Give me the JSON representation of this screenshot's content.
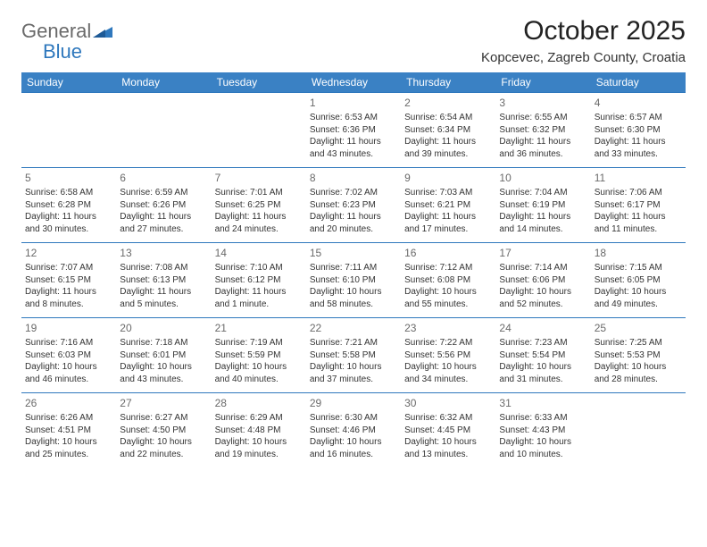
{
  "brand": {
    "part1": "General",
    "part2": "Blue"
  },
  "title": "October 2025",
  "location": "Kopcevec, Zagreb County, Croatia",
  "colors": {
    "header_bg": "#3a81c4",
    "header_text": "#ffffff",
    "border": "#2f78bd",
    "body_text": "#333333",
    "daynum": "#6a6a6a",
    "logo_gray": "#6a6a6a",
    "logo_blue": "#2f78bd",
    "background": "#ffffff"
  },
  "day_headers": [
    "Sunday",
    "Monday",
    "Tuesday",
    "Wednesday",
    "Thursday",
    "Friday",
    "Saturday"
  ],
  "weeks": [
    [
      {},
      {},
      {},
      {
        "n": "1",
        "sr": "Sunrise: 6:53 AM",
        "ss": "Sunset: 6:36 PM",
        "d1": "Daylight: 11 hours",
        "d2": "and 43 minutes."
      },
      {
        "n": "2",
        "sr": "Sunrise: 6:54 AM",
        "ss": "Sunset: 6:34 PM",
        "d1": "Daylight: 11 hours",
        "d2": "and 39 minutes."
      },
      {
        "n": "3",
        "sr": "Sunrise: 6:55 AM",
        "ss": "Sunset: 6:32 PM",
        "d1": "Daylight: 11 hours",
        "d2": "and 36 minutes."
      },
      {
        "n": "4",
        "sr": "Sunrise: 6:57 AM",
        "ss": "Sunset: 6:30 PM",
        "d1": "Daylight: 11 hours",
        "d2": "and 33 minutes."
      }
    ],
    [
      {
        "n": "5",
        "sr": "Sunrise: 6:58 AM",
        "ss": "Sunset: 6:28 PM",
        "d1": "Daylight: 11 hours",
        "d2": "and 30 minutes."
      },
      {
        "n": "6",
        "sr": "Sunrise: 6:59 AM",
        "ss": "Sunset: 6:26 PM",
        "d1": "Daylight: 11 hours",
        "d2": "and 27 minutes."
      },
      {
        "n": "7",
        "sr": "Sunrise: 7:01 AM",
        "ss": "Sunset: 6:25 PM",
        "d1": "Daylight: 11 hours",
        "d2": "and 24 minutes."
      },
      {
        "n": "8",
        "sr": "Sunrise: 7:02 AM",
        "ss": "Sunset: 6:23 PM",
        "d1": "Daylight: 11 hours",
        "d2": "and 20 minutes."
      },
      {
        "n": "9",
        "sr": "Sunrise: 7:03 AM",
        "ss": "Sunset: 6:21 PM",
        "d1": "Daylight: 11 hours",
        "d2": "and 17 minutes."
      },
      {
        "n": "10",
        "sr": "Sunrise: 7:04 AM",
        "ss": "Sunset: 6:19 PM",
        "d1": "Daylight: 11 hours",
        "d2": "and 14 minutes."
      },
      {
        "n": "11",
        "sr": "Sunrise: 7:06 AM",
        "ss": "Sunset: 6:17 PM",
        "d1": "Daylight: 11 hours",
        "d2": "and 11 minutes."
      }
    ],
    [
      {
        "n": "12",
        "sr": "Sunrise: 7:07 AM",
        "ss": "Sunset: 6:15 PM",
        "d1": "Daylight: 11 hours",
        "d2": "and 8 minutes."
      },
      {
        "n": "13",
        "sr": "Sunrise: 7:08 AM",
        "ss": "Sunset: 6:13 PM",
        "d1": "Daylight: 11 hours",
        "d2": "and 5 minutes."
      },
      {
        "n": "14",
        "sr": "Sunrise: 7:10 AM",
        "ss": "Sunset: 6:12 PM",
        "d1": "Daylight: 11 hours",
        "d2": "and 1 minute."
      },
      {
        "n": "15",
        "sr": "Sunrise: 7:11 AM",
        "ss": "Sunset: 6:10 PM",
        "d1": "Daylight: 10 hours",
        "d2": "and 58 minutes."
      },
      {
        "n": "16",
        "sr": "Sunrise: 7:12 AM",
        "ss": "Sunset: 6:08 PM",
        "d1": "Daylight: 10 hours",
        "d2": "and 55 minutes."
      },
      {
        "n": "17",
        "sr": "Sunrise: 7:14 AM",
        "ss": "Sunset: 6:06 PM",
        "d1": "Daylight: 10 hours",
        "d2": "and 52 minutes."
      },
      {
        "n": "18",
        "sr": "Sunrise: 7:15 AM",
        "ss": "Sunset: 6:05 PM",
        "d1": "Daylight: 10 hours",
        "d2": "and 49 minutes."
      }
    ],
    [
      {
        "n": "19",
        "sr": "Sunrise: 7:16 AM",
        "ss": "Sunset: 6:03 PM",
        "d1": "Daylight: 10 hours",
        "d2": "and 46 minutes."
      },
      {
        "n": "20",
        "sr": "Sunrise: 7:18 AM",
        "ss": "Sunset: 6:01 PM",
        "d1": "Daylight: 10 hours",
        "d2": "and 43 minutes."
      },
      {
        "n": "21",
        "sr": "Sunrise: 7:19 AM",
        "ss": "Sunset: 5:59 PM",
        "d1": "Daylight: 10 hours",
        "d2": "and 40 minutes."
      },
      {
        "n": "22",
        "sr": "Sunrise: 7:21 AM",
        "ss": "Sunset: 5:58 PM",
        "d1": "Daylight: 10 hours",
        "d2": "and 37 minutes."
      },
      {
        "n": "23",
        "sr": "Sunrise: 7:22 AM",
        "ss": "Sunset: 5:56 PM",
        "d1": "Daylight: 10 hours",
        "d2": "and 34 minutes."
      },
      {
        "n": "24",
        "sr": "Sunrise: 7:23 AM",
        "ss": "Sunset: 5:54 PM",
        "d1": "Daylight: 10 hours",
        "d2": "and 31 minutes."
      },
      {
        "n": "25",
        "sr": "Sunrise: 7:25 AM",
        "ss": "Sunset: 5:53 PM",
        "d1": "Daylight: 10 hours",
        "d2": "and 28 minutes."
      }
    ],
    [
      {
        "n": "26",
        "sr": "Sunrise: 6:26 AM",
        "ss": "Sunset: 4:51 PM",
        "d1": "Daylight: 10 hours",
        "d2": "and 25 minutes."
      },
      {
        "n": "27",
        "sr": "Sunrise: 6:27 AM",
        "ss": "Sunset: 4:50 PM",
        "d1": "Daylight: 10 hours",
        "d2": "and 22 minutes."
      },
      {
        "n": "28",
        "sr": "Sunrise: 6:29 AM",
        "ss": "Sunset: 4:48 PM",
        "d1": "Daylight: 10 hours",
        "d2": "and 19 minutes."
      },
      {
        "n": "29",
        "sr": "Sunrise: 6:30 AM",
        "ss": "Sunset: 4:46 PM",
        "d1": "Daylight: 10 hours",
        "d2": "and 16 minutes."
      },
      {
        "n": "30",
        "sr": "Sunrise: 6:32 AM",
        "ss": "Sunset: 4:45 PM",
        "d1": "Daylight: 10 hours",
        "d2": "and 13 minutes."
      },
      {
        "n": "31",
        "sr": "Sunrise: 6:33 AM",
        "ss": "Sunset: 4:43 PM",
        "d1": "Daylight: 10 hours",
        "d2": "and 10 minutes."
      },
      {}
    ]
  ]
}
